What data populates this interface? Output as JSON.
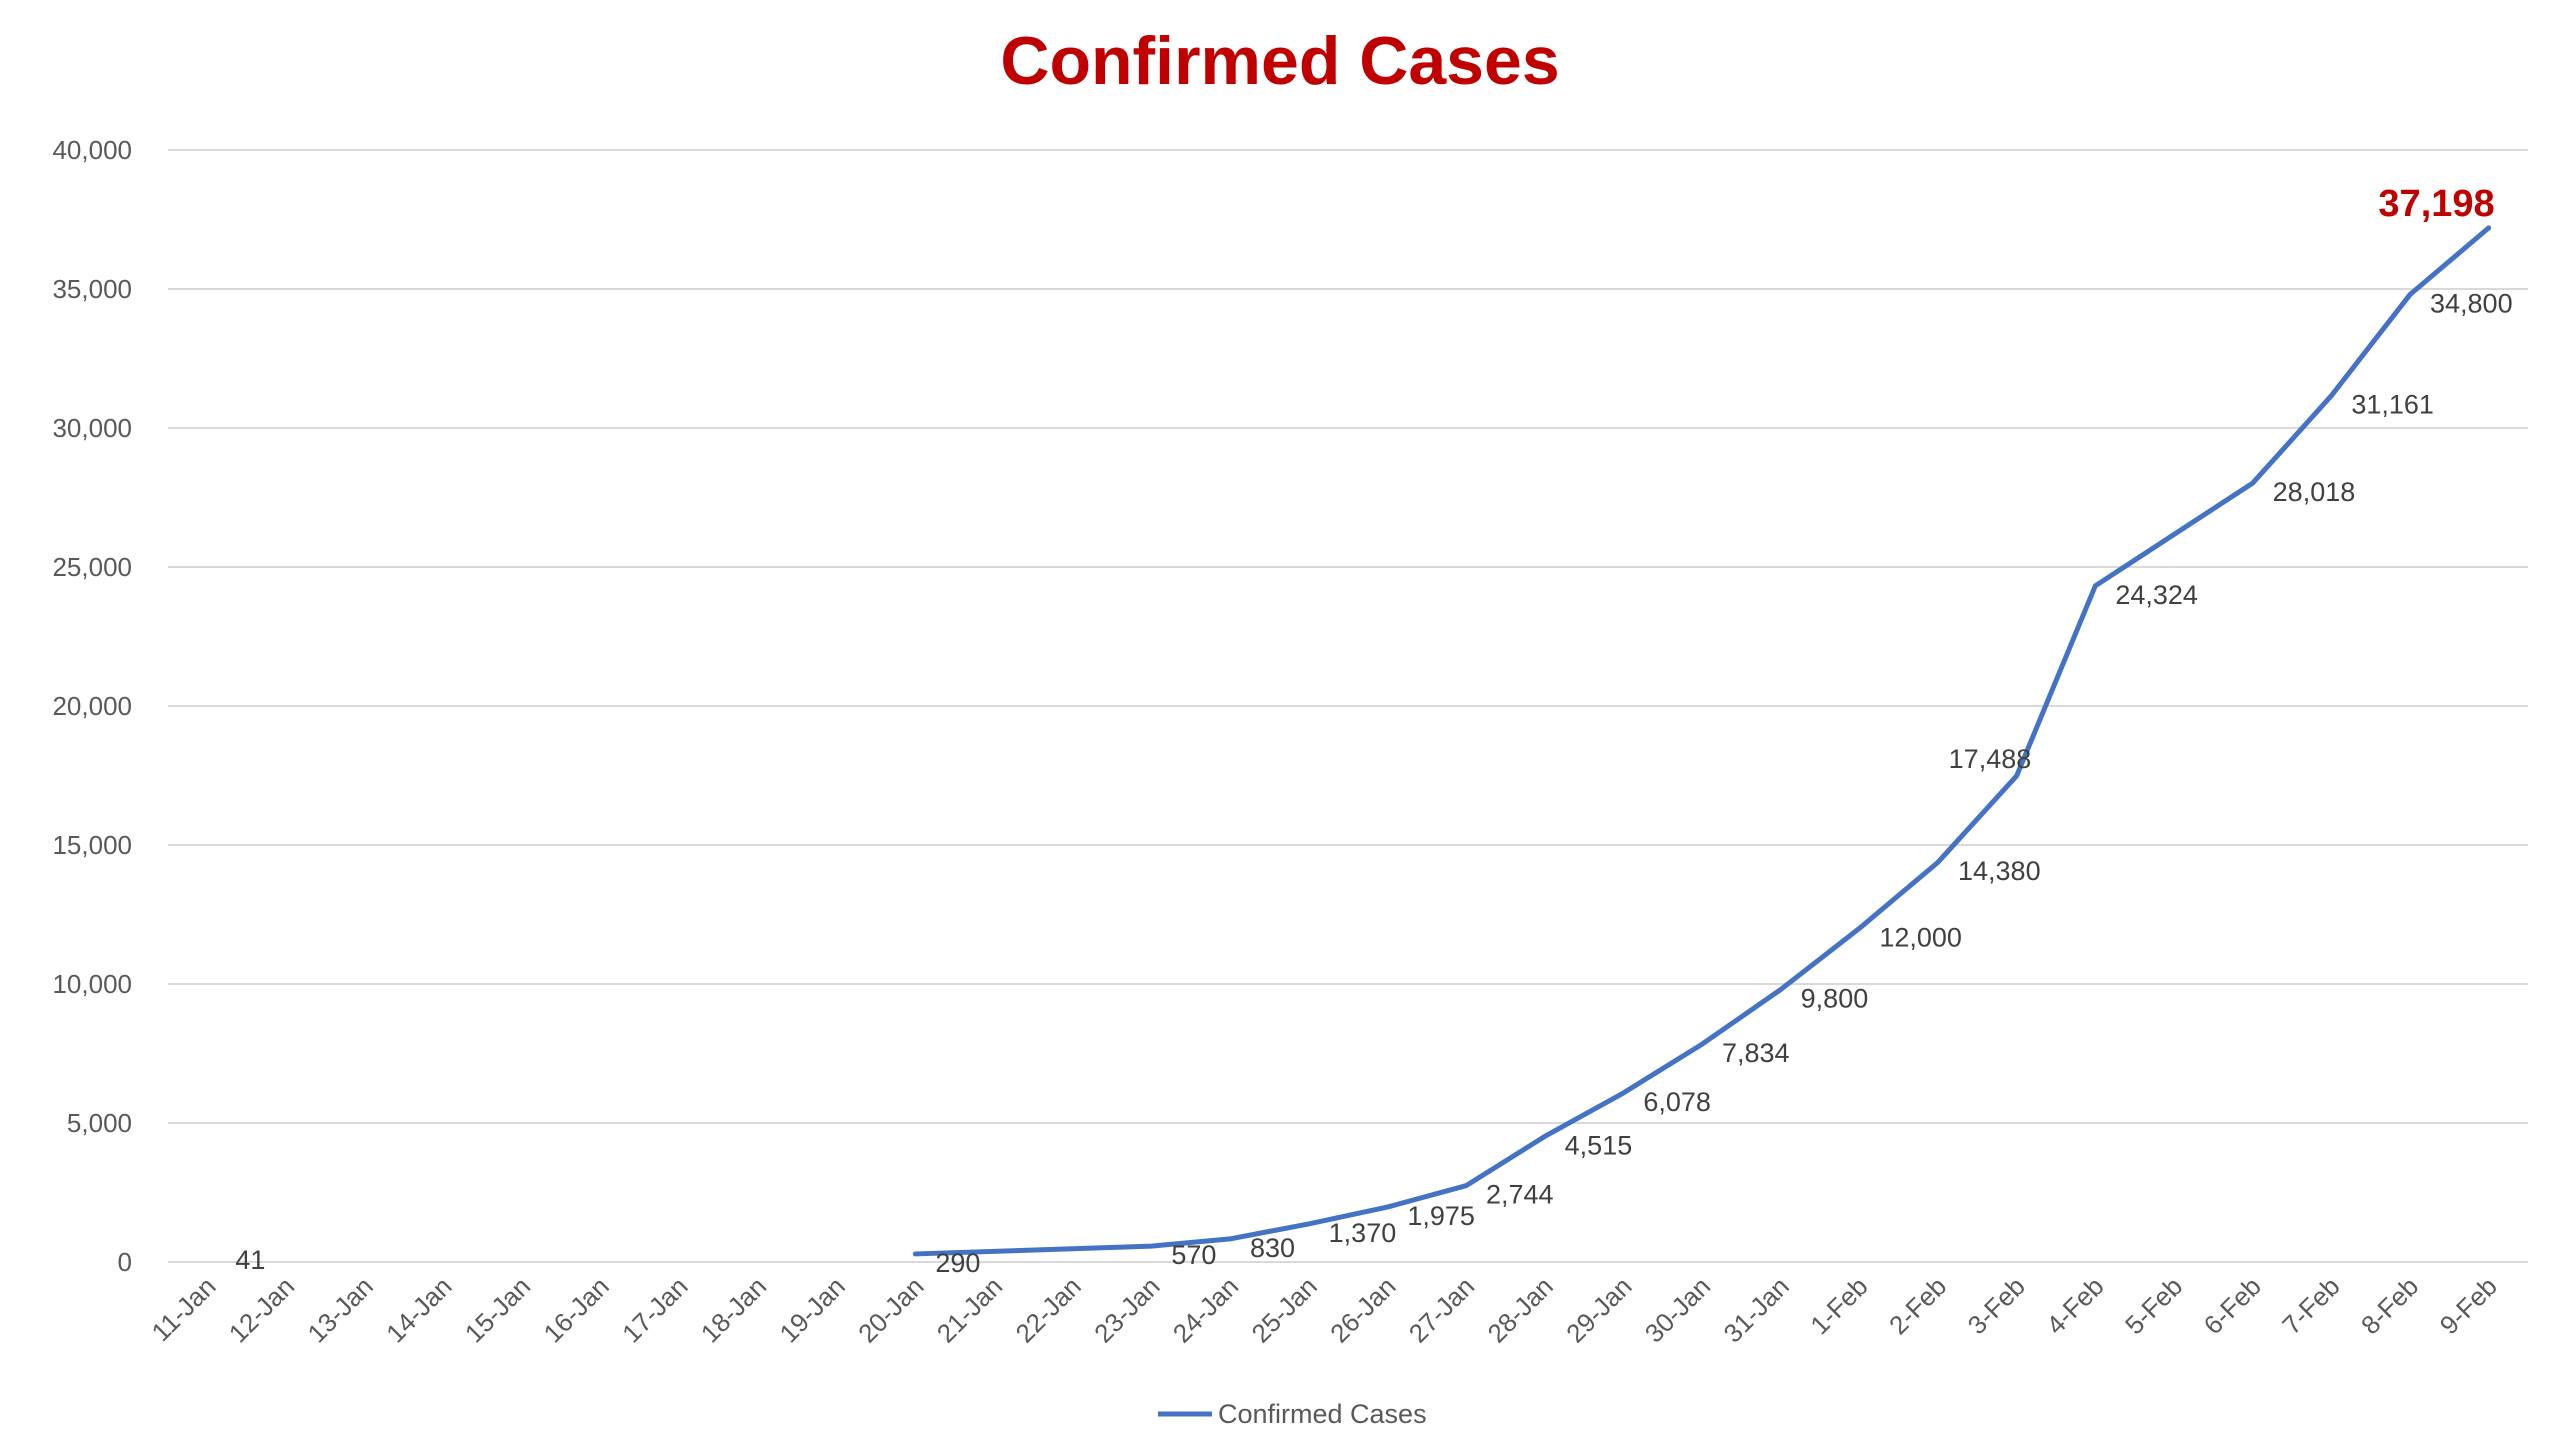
{
  "chart_data": {
    "type": "line",
    "title": "Confirmed Cases",
    "xlabel": "",
    "ylabel": "",
    "ylim": [
      0,
      40000
    ],
    "yticks": [
      "0",
      "5,000",
      "10,000",
      "15,000",
      "20,000",
      "25,000",
      "30,000",
      "35,000",
      "40,000"
    ],
    "grid": true,
    "legend_position": "bottom",
    "categories": [
      "11-Jan",
      "12-Jan",
      "13-Jan",
      "14-Jan",
      "15-Jan",
      "16-Jan",
      "17-Jan",
      "18-Jan",
      "19-Jan",
      "20-Jan",
      "21-Jan",
      "22-Jan",
      "23-Jan",
      "24-Jan",
      "25-Jan",
      "26-Jan",
      "27-Jan",
      "28-Jan",
      "29-Jan",
      "30-Jan",
      "31-Jan",
      "1-Feb",
      "2-Feb",
      "3-Feb",
      "4-Feb",
      "5-Feb",
      "6-Feb",
      "7-Feb",
      "8-Feb",
      "9-Feb"
    ],
    "series": [
      {
        "name": "Confirmed Cases",
        "color": "#4472c4",
        "values": [
          41,
          null,
          null,
          null,
          null,
          null,
          null,
          null,
          null,
          290,
          null,
          null,
          570,
          830,
          1370,
          1975,
          2744,
          4515,
          6078,
          7834,
          9800,
          12000,
          14380,
          17488,
          24324,
          null,
          28018,
          31161,
          34800,
          37198
        ],
        "labels": [
          "41",
          "",
          "",
          "",
          "",
          "",
          "",
          "",
          "",
          "290",
          "",
          "",
          "570",
          "830",
          "1,370",
          "1,975",
          "2,744",
          "4,515",
          "6,078",
          "7,834",
          "9,800",
          "12,000",
          "14,380",
          "17,488",
          "24,324",
          "",
          "28,018",
          "31,161",
          "34,800",
          "37,198"
        ]
      }
    ],
    "highlight_color": "#c00000"
  }
}
